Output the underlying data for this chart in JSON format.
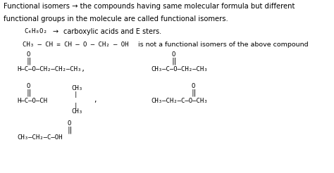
{
  "background_color": "#ffffff",
  "figsize": [
    4.74,
    2.46
  ],
  "dpi": 100,
  "text_color": "#000000",
  "line1": "Functional isomers → the compounds having same molecular formula but different",
  "line2": "functional groups in the molecule are called functional isomers.",
  "c4h8o2": "C₄H₈O₂",
  "arrow": "→",
  "carb_esters": "carboxylic acids and E sters.",
  "not_isomer_formula": "CH₃ – CH = CH – O – CH₂ – OH",
  "not_isomer_text": " is not a functional isomers of the above compound",
  "formula1_main": "H–C–O–CH₂–CH₂–CH₃,",
  "formula2_main": "CH₃–C–O–CH₂–CH₃",
  "formula3_main": "H–C–O–CH",
  "formula3_ch3top": "CH₃",
  "formula3_bar": "|",
  "formula3_ch3bot": "CH₃",
  "formula3_comma": ",",
  "formula4_main": "CH₃–CH₂–C–O–CH₃",
  "formula5_main": "CH₃–CH₂–C–OH",
  "O": "O",
  "dbl": "‖"
}
